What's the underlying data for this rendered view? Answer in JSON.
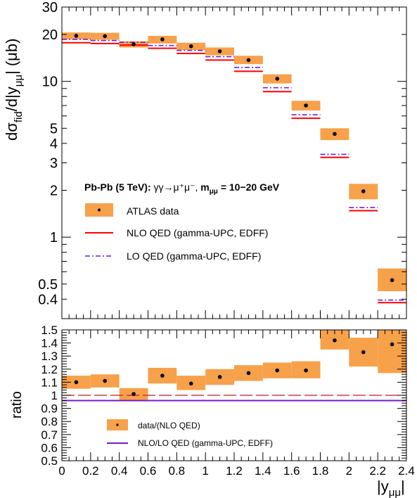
{
  "chart_data": [
    {
      "type": "scatter",
      "panel": "main",
      "ylabel": {
        "base": "dσ",
        "sub1": "fid",
        "mid": "/d|y",
        "sub2": "μμ",
        "end": "| (μb)"
      },
      "yscale": "log",
      "ylim": [
        0.3,
        30
      ],
      "xlim": [
        0,
        2.4
      ],
      "ytick_labels": [
        {
          "v": 0.4,
          "t": "0.4"
        },
        {
          "v": 0.5,
          "t": "0.5"
        },
        {
          "v": 1,
          "t": "1"
        },
        {
          "v": 2,
          "t": "2"
        },
        {
          "v": 3,
          "t": "3"
        },
        {
          "v": 4,
          "t": "4"
        },
        {
          "v": 5,
          "t": "5"
        },
        {
          "v": 10,
          "t": "10"
        },
        {
          "v": 20,
          "t": "20"
        },
        {
          "v": 30,
          "t": "30"
        }
      ],
      "annotation": {
        "system": "Pb-Pb (5 TeV): ",
        "process": "γγ→μ⁺μ⁻, ",
        "mass": "m",
        "mass_sub": "μμ",
        "mass_range": " = 10−20 GeV"
      },
      "bins": [
        {
          "lo": 0.0,
          "hi": 0.2,
          "x": 0.1,
          "data": 19.6,
          "unc_lo": 18.6,
          "unc_hi": 20.6,
          "nlo": 17.7,
          "lo_qed": 18.6
        },
        {
          "lo": 0.2,
          "hi": 0.4,
          "x": 0.3,
          "data": 19.5,
          "unc_lo": 18.5,
          "unc_hi": 20.5,
          "nlo": 17.5,
          "lo_qed": 18.3
        },
        {
          "lo": 0.4,
          "hi": 0.6,
          "x": 0.5,
          "data": 17.3,
          "unc_lo": 16.5,
          "unc_hi": 18.1,
          "nlo": 17.1,
          "lo_qed": 17.8
        },
        {
          "lo": 0.6,
          "hi": 0.8,
          "x": 0.7,
          "data": 18.6,
          "unc_lo": 17.5,
          "unc_hi": 19.6,
          "nlo": 16.3,
          "lo_qed": 17.0
        },
        {
          "lo": 0.8,
          "hi": 1.0,
          "x": 0.9,
          "data": 16.8,
          "unc_lo": 15.9,
          "unc_hi": 17.7,
          "nlo": 15.1,
          "lo_qed": 15.8
        },
        {
          "lo": 1.0,
          "hi": 1.2,
          "x": 1.1,
          "data": 15.6,
          "unc_lo": 14.7,
          "unc_hi": 16.5,
          "nlo": 13.7,
          "lo_qed": 14.4
        },
        {
          "lo": 1.2,
          "hi": 1.4,
          "x": 1.3,
          "data": 13.7,
          "unc_lo": 12.9,
          "unc_hi": 14.6,
          "nlo": 11.6,
          "lo_qed": 12.3
        },
        {
          "lo": 1.4,
          "hi": 1.6,
          "x": 1.5,
          "data": 10.4,
          "unc_lo": 9.7,
          "unc_hi": 11.1,
          "nlo": 8.6,
          "lo_qed": 9.1
        },
        {
          "lo": 1.6,
          "hi": 1.8,
          "x": 1.7,
          "data": 7.0,
          "unc_lo": 6.5,
          "unc_hi": 7.5,
          "nlo": 5.8,
          "lo_qed": 6.1
        },
        {
          "lo": 1.8,
          "hi": 2.0,
          "x": 1.9,
          "data": 4.6,
          "unc_lo": 4.2,
          "unc_hi": 5.0,
          "nlo": 3.25,
          "lo_qed": 3.4
        },
        {
          "lo": 2.0,
          "hi": 2.2,
          "x": 2.1,
          "data": 1.97,
          "unc_lo": 1.75,
          "unc_hi": 2.2,
          "nlo": 1.48,
          "lo_qed": 1.55
        },
        {
          "lo": 2.2,
          "hi": 2.4,
          "x": 2.3,
          "data": 0.53,
          "unc_lo": 0.45,
          "unc_hi": 0.63,
          "nlo": 0.38,
          "lo_qed": 0.395
        }
      ],
      "series": [
        {
          "name": "ATLAS data",
          "style": "marker-with-band",
          "color": "#f7a14a"
        },
        {
          "name": "NLO QED (gamma-UPC, EDFF)",
          "style": "solid",
          "color": "#ff0000"
        },
        {
          "name": "LO QED (gamma-UPC, EDFF)",
          "style": "dash-dot",
          "color": "#6a1fe0"
        }
      ],
      "legend": "left-middle"
    },
    {
      "type": "scatter",
      "panel": "ratio",
      "ylabel": "ratio",
      "xlabel": {
        "main": "|y",
        "sub": "μμ",
        "end": "|"
      },
      "ylim": [
        0.5,
        1.5
      ],
      "xlim": [
        0,
        2.4
      ],
      "ytick_labels": [
        "0.5",
        "0.6",
        "0.7",
        "0.8",
        "0.9",
        "1",
        "1.1",
        "1.2",
        "1.3",
        "1.4",
        "1.5"
      ],
      "xtick_labels": [
        "0",
        "0.2",
        "0.4",
        "0.6",
        "0.8",
        "1",
        "1.2",
        "1.4",
        "1.6",
        "1.8",
        "2",
        "2.2",
        "2.4"
      ],
      "bins": [
        {
          "lo": 0.0,
          "hi": 0.2,
          "x": 0.1,
          "ratio": 1.1,
          "unc_lo": 1.05,
          "unc_hi": 1.15
        },
        {
          "lo": 0.2,
          "hi": 0.4,
          "x": 0.3,
          "ratio": 1.11,
          "unc_lo": 1.06,
          "unc_hi": 1.16
        },
        {
          "lo": 0.4,
          "hi": 0.6,
          "x": 0.5,
          "ratio": 1.01,
          "unc_lo": 0.965,
          "unc_hi": 1.055
        },
        {
          "lo": 0.6,
          "hi": 0.8,
          "x": 0.7,
          "ratio": 1.15,
          "unc_lo": 1.09,
          "unc_hi": 1.21
        },
        {
          "lo": 0.8,
          "hi": 1.0,
          "x": 0.9,
          "ratio": 1.09,
          "unc_lo": 1.04,
          "unc_hi": 1.15
        },
        {
          "lo": 1.0,
          "hi": 1.2,
          "x": 1.1,
          "ratio": 1.14,
          "unc_lo": 1.08,
          "unc_hi": 1.2
        },
        {
          "lo": 1.2,
          "hi": 1.4,
          "x": 1.3,
          "ratio": 1.17,
          "unc_lo": 1.11,
          "unc_hi": 1.23
        },
        {
          "lo": 1.4,
          "hi": 1.6,
          "x": 1.5,
          "ratio": 1.19,
          "unc_lo": 1.13,
          "unc_hi": 1.25
        },
        {
          "lo": 1.6,
          "hi": 1.8,
          "x": 1.7,
          "ratio": 1.19,
          "unc_lo": 1.13,
          "unc_hi": 1.26
        },
        {
          "lo": 1.8,
          "hi": 2.0,
          "x": 1.9,
          "ratio": 1.42,
          "unc_lo": 1.35,
          "unc_hi": 1.5
        },
        {
          "lo": 2.0,
          "hi": 2.2,
          "x": 2.1,
          "ratio": 1.33,
          "unc_lo": 1.22,
          "unc_hi": 1.44
        },
        {
          "lo": 2.2,
          "hi": 2.4,
          "x": 2.3,
          "ratio": 1.39,
          "unc_lo": 1.17,
          "unc_hi": 1.5
        }
      ],
      "reference_line": {
        "y": 1.0,
        "style": "dashed",
        "color": "#c4191f"
      },
      "nlo_lo_ratio": 0.96,
      "series": [
        {
          "name": "data/(NLO QED)",
          "style": "marker-with-band",
          "color": "#f7a14a"
        },
        {
          "name": "NLO/LO QED (gamma-UPC, EDFF)",
          "style": "solid",
          "color": "#7a19c9"
        }
      ],
      "legend": "bottom-left"
    }
  ]
}
